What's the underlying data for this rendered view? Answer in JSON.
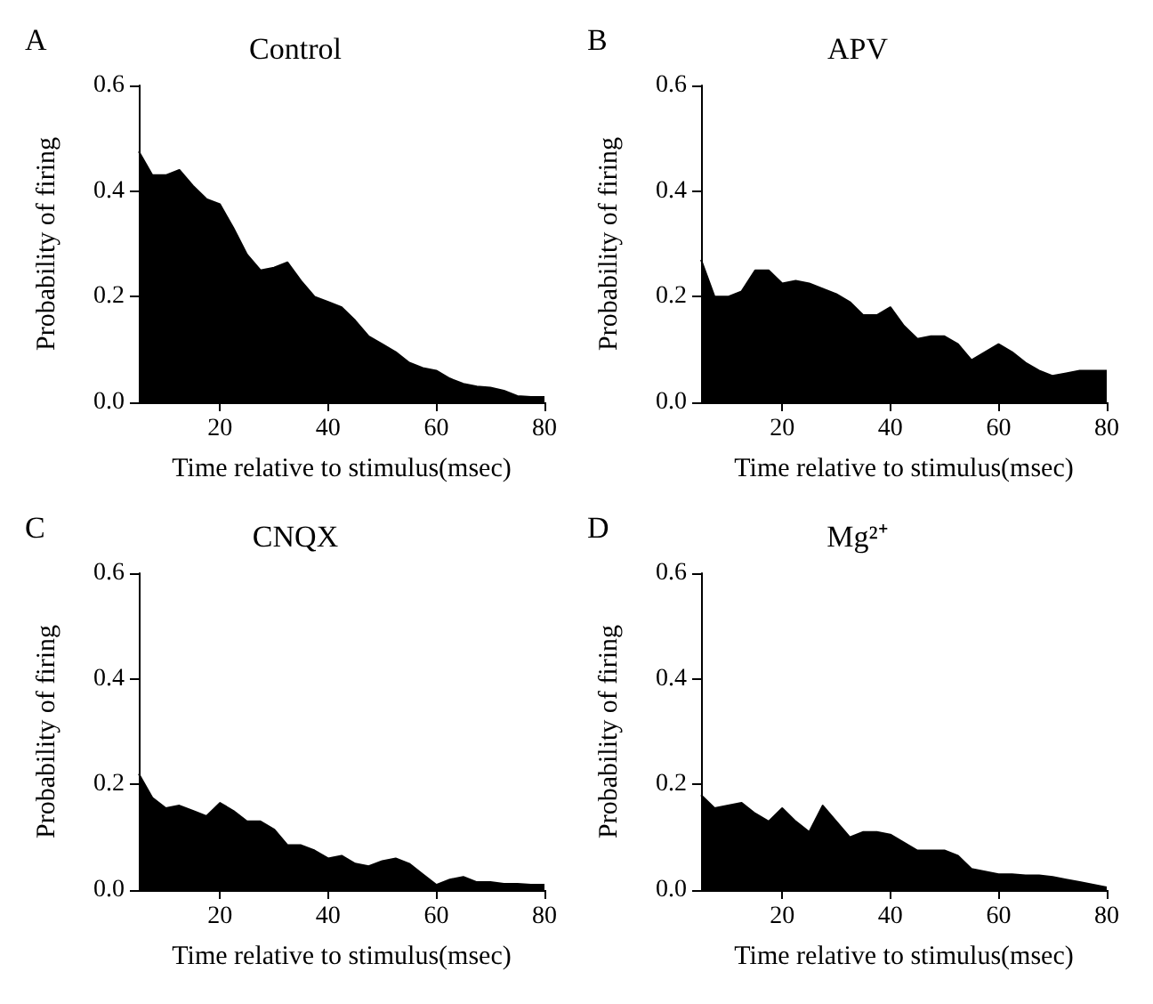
{
  "chart_data": [
    {
      "type": "area",
      "title": "Control",
      "annotations": [
        "A"
      ],
      "xlabel": "Time relative to stimulus(msec)",
      "ylabel": "Probability of firing",
      "x": [
        5,
        7.5,
        10,
        12.5,
        15,
        17.5,
        20,
        22.5,
        25,
        27.5,
        30,
        32.5,
        35,
        37.5,
        40,
        42.5,
        45,
        47.5,
        50,
        52.5,
        55,
        57.5,
        60,
        62.5,
        65,
        67.5,
        70,
        72.5,
        75,
        77.5,
        80
      ],
      "series": [
        {
          "color": "#000000",
          "values": [
            0.475,
            0.43,
            0.43,
            0.44,
            0.41,
            0.385,
            0.375,
            0.33,
            0.28,
            0.25,
            0.255,
            0.265,
            0.23,
            0.2,
            0.19,
            0.18,
            0.155,
            0.125,
            0.11,
            0.095,
            0.075,
            0.065,
            0.06,
            0.045,
            0.035,
            0.03,
            0.028,
            0.022,
            0.012,
            0.01,
            0.01
          ]
        }
      ],
      "xlim": [
        5,
        80
      ],
      "xticks": [
        20,
        40,
        60,
        80
      ],
      "ylim": [
        0,
        0.6
      ],
      "yticks": [
        {
          "value": 0,
          "label": "0.0"
        },
        {
          "value": 0.2,
          "label": "0.2"
        },
        {
          "value": 0.4,
          "label": "0.4"
        },
        {
          "value": 0.6,
          "label": "0.6"
        }
      ]
    },
    {
      "type": "area",
      "title": "APV",
      "annotations": [
        "B"
      ],
      "xlabel": "Time relative to stimulus(msec)",
      "ylabel": "Probability of firing",
      "x": [
        5,
        7.5,
        10,
        12.5,
        15,
        17.5,
        20,
        22.5,
        25,
        27.5,
        30,
        32.5,
        35,
        37.5,
        40,
        42.5,
        45,
        47.5,
        50,
        52.5,
        55,
        57.5,
        60,
        62.5,
        65,
        67.5,
        70,
        72.5,
        75,
        77.5,
        80
      ],
      "series": [
        {
          "color": "#000000",
          "values": [
            0.27,
            0.2,
            0.2,
            0.21,
            0.25,
            0.25,
            0.225,
            0.23,
            0.225,
            0.215,
            0.205,
            0.19,
            0.165,
            0.165,
            0.18,
            0.145,
            0.12,
            0.125,
            0.125,
            0.11,
            0.08,
            0.095,
            0.11,
            0.095,
            0.075,
            0.06,
            0.05,
            0.055,
            0.06,
            0.06,
            0.06
          ]
        }
      ],
      "xlim": [
        5,
        80
      ],
      "xticks": [
        20,
        40,
        60,
        80
      ],
      "ylim": [
        0,
        0.6
      ],
      "yticks": [
        {
          "value": 0,
          "label": "0.0"
        },
        {
          "value": 0.2,
          "label": "0.2"
        },
        {
          "value": 0.4,
          "label": "0.4"
        },
        {
          "value": 0.6,
          "label": "0.6"
        }
      ]
    },
    {
      "type": "area",
      "title": "CNQX",
      "annotations": [
        "C"
      ],
      "xlabel": "Time relative to stimulus(msec)",
      "ylabel": "Probability of firing",
      "x": [
        5,
        7.5,
        10,
        12.5,
        15,
        17.5,
        20,
        22.5,
        25,
        27.5,
        30,
        32.5,
        35,
        37.5,
        40,
        42.5,
        45,
        47.5,
        50,
        52.5,
        55,
        57.5,
        60,
        62.5,
        65,
        67.5,
        70,
        72.5,
        75,
        77.5,
        80
      ],
      "series": [
        {
          "color": "#000000",
          "values": [
            0.22,
            0.175,
            0.155,
            0.16,
            0.15,
            0.14,
            0.165,
            0.15,
            0.13,
            0.13,
            0.115,
            0.085,
            0.085,
            0.075,
            0.06,
            0.065,
            0.05,
            0.045,
            0.055,
            0.06,
            0.05,
            0.03,
            0.01,
            0.02,
            0.025,
            0.015,
            0.015,
            0.012,
            0.012,
            0.01,
            0.01
          ]
        }
      ],
      "xlim": [
        5,
        80
      ],
      "xticks": [
        20,
        40,
        60,
        80
      ],
      "ylim": [
        0,
        0.6
      ],
      "yticks": [
        {
          "value": 0,
          "label": "0.0"
        },
        {
          "value": 0.2,
          "label": "0.2"
        },
        {
          "value": 0.4,
          "label": "0.4"
        },
        {
          "value": 0.6,
          "label": "0.6"
        }
      ]
    },
    {
      "type": "area",
      "title": "Mg²⁺",
      "annotations": [
        "D"
      ],
      "xlabel": "Time relative to stimulus(msec)",
      "ylabel": "Probability of firing",
      "x": [
        5,
        7.5,
        10,
        12.5,
        15,
        17.5,
        20,
        22.5,
        25,
        27.5,
        30,
        32.5,
        35,
        37.5,
        40,
        42.5,
        45,
        47.5,
        50,
        52.5,
        55,
        57.5,
        60,
        62.5,
        65,
        67.5,
        70,
        72.5,
        75,
        77.5,
        80
      ],
      "series": [
        {
          "color": "#000000",
          "values": [
            0.18,
            0.155,
            0.16,
            0.165,
            0.145,
            0.13,
            0.155,
            0.13,
            0.11,
            0.16,
            0.13,
            0.1,
            0.11,
            0.11,
            0.105,
            0.09,
            0.075,
            0.075,
            0.075,
            0.065,
            0.04,
            0.035,
            0.03,
            0.03,
            0.028,
            0.028,
            0.025,
            0.02,
            0.015,
            0.01,
            0.005
          ]
        }
      ],
      "xlim": [
        5,
        80
      ],
      "xticks": [
        20,
        40,
        60,
        80
      ],
      "ylim": [
        0,
        0.6
      ],
      "yticks": [
        {
          "value": 0,
          "label": "0.0"
        },
        {
          "value": 0.2,
          "label": "0.2"
        },
        {
          "value": 0.4,
          "label": "0.4"
        },
        {
          "value": 0.6,
          "label": "0.6"
        }
      ]
    }
  ]
}
